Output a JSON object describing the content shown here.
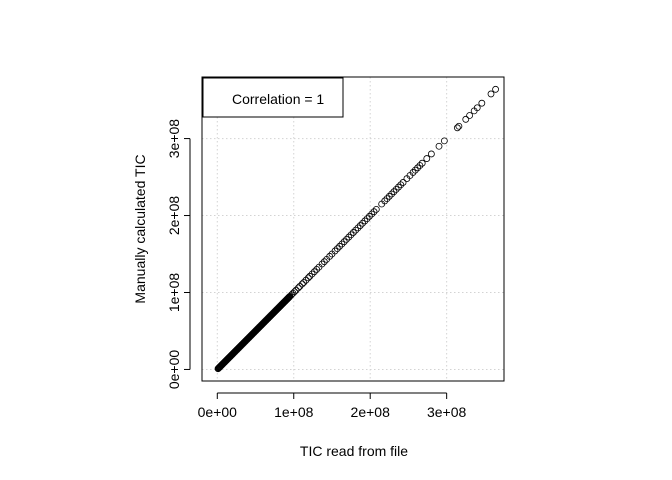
{
  "chart_data": {
    "type": "scatter",
    "xlabel": "TIC read from file",
    "ylabel": "Manually calculated TIC",
    "xlim": [
      -20000000,
      375000000
    ],
    "ylim": [
      -15000000,
      380000000
    ],
    "xticks": [
      0,
      100000000,
      200000000,
      300000000
    ],
    "xtick_labels": [
      "0e+00",
      "1e+08",
      "2e+08",
      "3e+08"
    ],
    "yticks": [
      0,
      100000000,
      200000000,
      300000000
    ],
    "ytick_labels": [
      "0e+00",
      "1e+08",
      "2e+08",
      "3e+08"
    ],
    "grid": true,
    "legend": {
      "text": "Correlation = 1",
      "placement": "top-left"
    },
    "dense_segment": {
      "x_start": 1000000,
      "x_end": 95000000,
      "count": 180
    },
    "sparse_points": [
      97000000,
      99000000,
      101000000,
      103000000,
      106000000,
      108000000,
      111000000,
      113000000,
      116000000,
      119000000,
      121000000,
      124000000,
      127000000,
      130000000,
      133000000,
      137000000,
      140000000,
      143000000,
      147000000,
      150000000,
      154000000,
      157000000,
      160000000,
      163000000,
      166000000,
      169000000,
      172000000,
      175000000,
      178000000,
      181000000,
      184000000,
      187000000,
      190000000,
      193000000,
      196000000,
      199000000,
      202000000,
      205000000,
      208000000,
      215000000,
      219000000,
      222000000,
      225000000,
      228000000,
      231000000,
      234000000,
      237000000,
      240000000,
      243000000,
      248000000,
      252000000,
      256000000,
      259000000,
      262000000,
      265000000,
      268000000,
      274000000,
      280000000,
      290000000,
      297000000,
      314000000,
      316000000,
      325000000,
      330000000,
      336000000,
      340000000,
      346000000,
      358000000,
      364000000
    ]
  }
}
